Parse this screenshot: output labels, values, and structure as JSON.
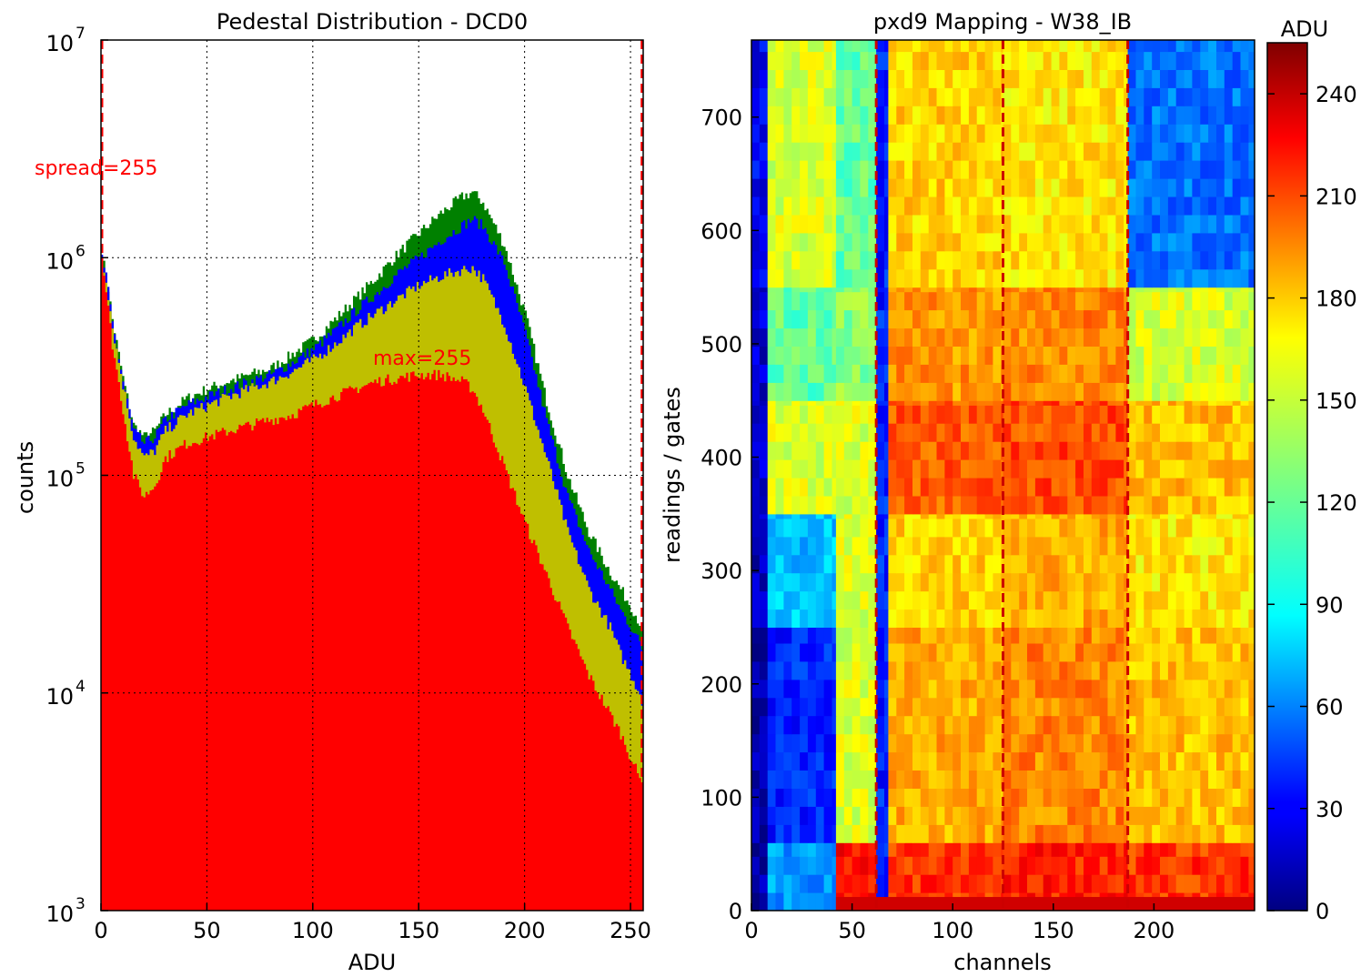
{
  "charts": {
    "left": {
      "type": "area",
      "title": "Pedestal Distribution - DCD0",
      "xlabel": "ADU",
      "ylabel": "counts",
      "xlim": [
        0,
        256
      ],
      "ylim": [
        1000,
        10000000
      ],
      "yscale": "log",
      "grid": true,
      "xticks": [
        "0",
        "50",
        "100",
        "150",
        "200",
        "250"
      ],
      "yticks": [
        {
          "base": "10",
          "exp": "3"
        },
        {
          "base": "10",
          "exp": "4"
        },
        {
          "base": "10",
          "exp": "5"
        },
        {
          "base": "10",
          "exp": "6"
        },
        {
          "base": "10",
          "exp": "7"
        }
      ],
      "annotations": {
        "spread": "spread=255",
        "max": "max=255"
      },
      "colors": {
        "series1": "#ff0000",
        "series2": "#bfbf00",
        "series3": "#0000ff",
        "series4": "#008000",
        "marker": "#ff0000"
      },
      "chart_data": {
        "type": "area",
        "stacked": true,
        "x": [
          0,
          2,
          5,
          10,
          15,
          20,
          25,
          30,
          40,
          50,
          60,
          70,
          80,
          90,
          100,
          110,
          120,
          130,
          140,
          150,
          160,
          170,
          175,
          180,
          190,
          200,
          210,
          220,
          230,
          240,
          245,
          250,
          254,
          256
        ],
        "series": [
          {
            "values": [
              1000000,
              700000,
              400000,
              200000,
              100000,
              80000,
              90000,
              120000,
              140000,
              150000,
              160000,
              170000,
              180000,
              190000,
              210000,
              230000,
              250000,
              270000,
              280000,
              290000,
              290000,
              270000,
              250000,
              200000,
              110000,
              60000,
              35000,
              20000,
              12000,
              8000,
              6500,
              5000,
              4000,
              3500
            ]
          },
          {
            "values": [
              1000000,
              800000,
              480000,
              260000,
              150000,
              120000,
              130000,
              160000,
              190000,
              210000,
              230000,
              250000,
              270000,
              300000,
              340000,
              400000,
              480000,
              560000,
              650000,
              750000,
              820000,
              880000,
              900000,
              800000,
              500000,
              250000,
              120000,
              55000,
              30000,
              20000,
              15000,
              12000,
              10000,
              8000
            ]
          },
          {
            "values": [
              1000000,
              820000,
              500000,
              270000,
              160000,
              140000,
              150000,
              180000,
              210000,
              230000,
              250000,
              270000,
              290000,
              330000,
              380000,
              460000,
              570000,
              690000,
              850000,
              1000000,
              1200000,
              1400000,
              1500000,
              1400000,
              950000,
              450000,
              180000,
              80000,
              45000,
              30000,
              24000,
              20000,
              17000,
              15000
            ]
          },
          {
            "values": [
              1000000,
              850000,
              520000,
              280000,
              170000,
              150000,
              160000,
              190000,
              225000,
              250000,
              270000,
              290000,
              310000,
              360000,
              420000,
              520000,
              650000,
              820000,
              1050000,
              1300000,
              1600000,
              1900000,
              2000000,
              1800000,
              1150000,
              550000,
              220000,
              100000,
              55000,
              36000,
              30000,
              25000,
              21000,
              18000
            ]
          }
        ]
      }
    },
    "right": {
      "type": "heatmap",
      "title": "pxd9 Mapping - W38_IB",
      "xlabel": "channels",
      "ylabel": "readings / gates",
      "xlim": [
        0,
        250
      ],
      "ylim": [
        0,
        768
      ],
      "xticks": [
        "0",
        "50",
        "100",
        "150",
        "200"
      ],
      "yticks": [
        "0",
        "100",
        "200",
        "300",
        "400",
        "500",
        "600",
        "700"
      ],
      "colorbar": {
        "label": "ADU",
        "ticks": [
          "0",
          "30",
          "60",
          "90",
          "120",
          "150",
          "180",
          "210",
          "240"
        ],
        "range": [
          0,
          255
        ],
        "colormap": "jet"
      },
      "chart_data": {
        "type": "heatmap",
        "dividers_x": [
          62,
          125,
          187
        ],
        "row_bands": [
          {
            "from": 0,
            "to": 60,
            "levels": [
              10,
              70,
              220,
              210,
              215,
              210
            ]
          },
          {
            "from": 60,
            "to": 250,
            "levels": [
              12,
              40,
              150,
              180,
              190,
              175
            ]
          },
          {
            "from": 250,
            "to": 350,
            "levels": [
              15,
              80,
              150,
              170,
              180,
              165
            ]
          },
          {
            "from": 350,
            "to": 450,
            "levels": [
              18,
              150,
              150,
              200,
              205,
              175
            ]
          },
          {
            "from": 450,
            "to": 550,
            "levels": [
              20,
              120,
              130,
              185,
              190,
              150
            ]
          },
          {
            "from": 550,
            "to": 768,
            "levels": [
              30,
              150,
              120,
              170,
              165,
              60
            ]
          }
        ]
      }
    }
  }
}
